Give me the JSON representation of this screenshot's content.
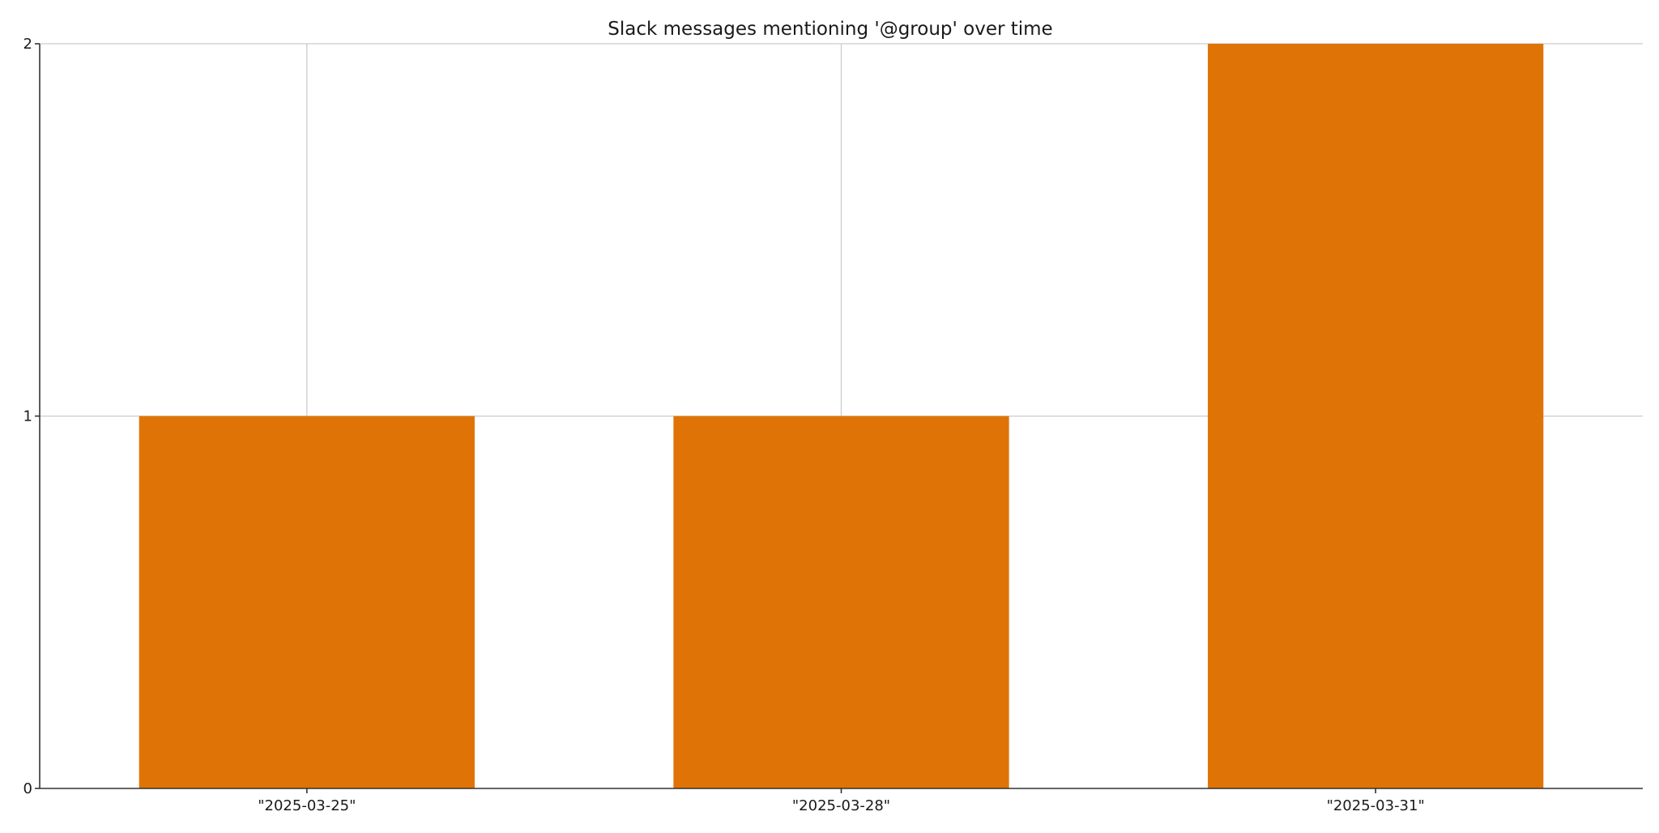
{
  "chart_data": {
    "type": "bar",
    "title": "Slack messages mentioning '@group' over time",
    "xlabel": "",
    "ylabel": "",
    "categories": [
      "\"2025-03-25\"",
      "\"2025-03-28\"",
      "\"2025-03-31\""
    ],
    "values": [
      1,
      1,
      2
    ],
    "ylim": [
      0,
      2
    ],
    "yticks": [
      "0",
      "1",
      "2"
    ],
    "grid": true,
    "bar_color": "#e07306"
  }
}
